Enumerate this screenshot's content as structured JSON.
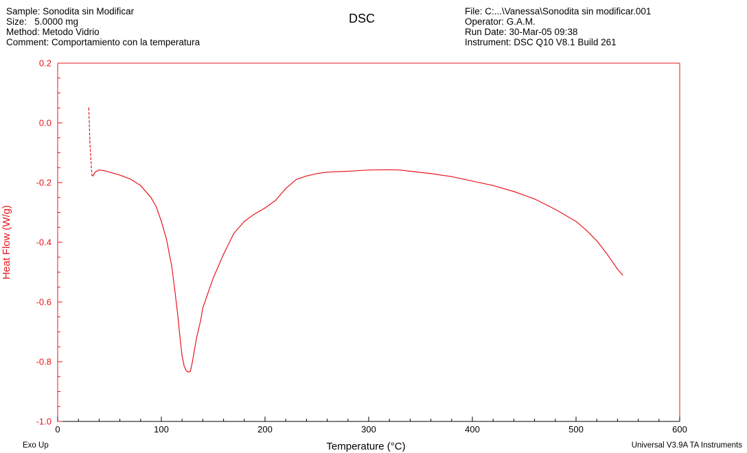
{
  "header": {
    "title": "DSC",
    "left": [
      "Sample: Sonodita sin Modificar",
      "Size:   5.0000 mg",
      "Method: Metodo Vidrio",
      "Comment: Comportamiento con la temperatura"
    ],
    "right": [
      "File: C:...\\Vanessa\\Sonodita sin modificar.001",
      "Operator: G.A.M.",
      "Run Date: 30-Mar-05 09:38",
      "Instrument: DSC Q10 V8.1 Build 261"
    ]
  },
  "footer": {
    "left": "Exo Up",
    "right": "Universal V3.9A TA Instruments"
  },
  "colors": {
    "series": "#e8141b",
    "axis_left": "#e8141b",
    "axis_bottom": "#000000"
  },
  "chart_data": {
    "type": "line",
    "xlabel": "Temperature (°C)",
    "ylabel": "Heat Flow (W/g)",
    "xlim": [
      0,
      600
    ],
    "ylim": [
      -1.0,
      0.2
    ],
    "xticks": [
      "0",
      "100",
      "200",
      "300",
      "400",
      "500",
      "600"
    ],
    "yticks": [
      "0.2",
      "0.0",
      "-0.2",
      "-0.4",
      "-0.6",
      "-0.8",
      "-1.0"
    ],
    "grid": false,
    "series": [
      {
        "x": [
          30,
          30.5,
          31,
          32,
          33,
          34,
          36,
          40,
          45,
          50,
          55,
          60,
          70,
          80,
          90,
          95,
          100,
          105,
          110,
          113,
          116,
          118,
          120,
          122,
          124,
          126,
          128,
          130,
          132,
          134,
          136,
          138,
          140,
          145,
          150,
          160,
          170,
          180,
          190,
          200,
          210,
          220,
          230,
          240,
          250,
          260,
          280,
          300,
          320,
          330,
          340,
          360,
          380,
          400,
          420,
          440,
          460,
          480,
          500,
          510,
          520,
          530,
          540,
          545
        ],
        "y": [
          0.05,
          0.0,
          -0.06,
          -0.12,
          -0.175,
          -0.178,
          -0.165,
          -0.158,
          -0.16,
          -0.165,
          -0.17,
          -0.175,
          -0.188,
          -0.21,
          -0.25,
          -0.28,
          -0.33,
          -0.39,
          -0.48,
          -0.56,
          -0.65,
          -0.72,
          -0.78,
          -0.815,
          -0.83,
          -0.835,
          -0.832,
          -0.8,
          -0.76,
          -0.72,
          -0.69,
          -0.66,
          -0.62,
          -0.57,
          -0.52,
          -0.44,
          -0.37,
          -0.33,
          -0.305,
          -0.285,
          -0.26,
          -0.22,
          -0.19,
          -0.178,
          -0.17,
          -0.165,
          -0.162,
          -0.158,
          -0.157,
          -0.158,
          -0.162,
          -0.17,
          -0.18,
          -0.195,
          -0.21,
          -0.23,
          -0.255,
          -0.29,
          -0.33,
          -0.36,
          -0.395,
          -0.44,
          -0.49,
          -0.51
        ]
      }
    ]
  }
}
